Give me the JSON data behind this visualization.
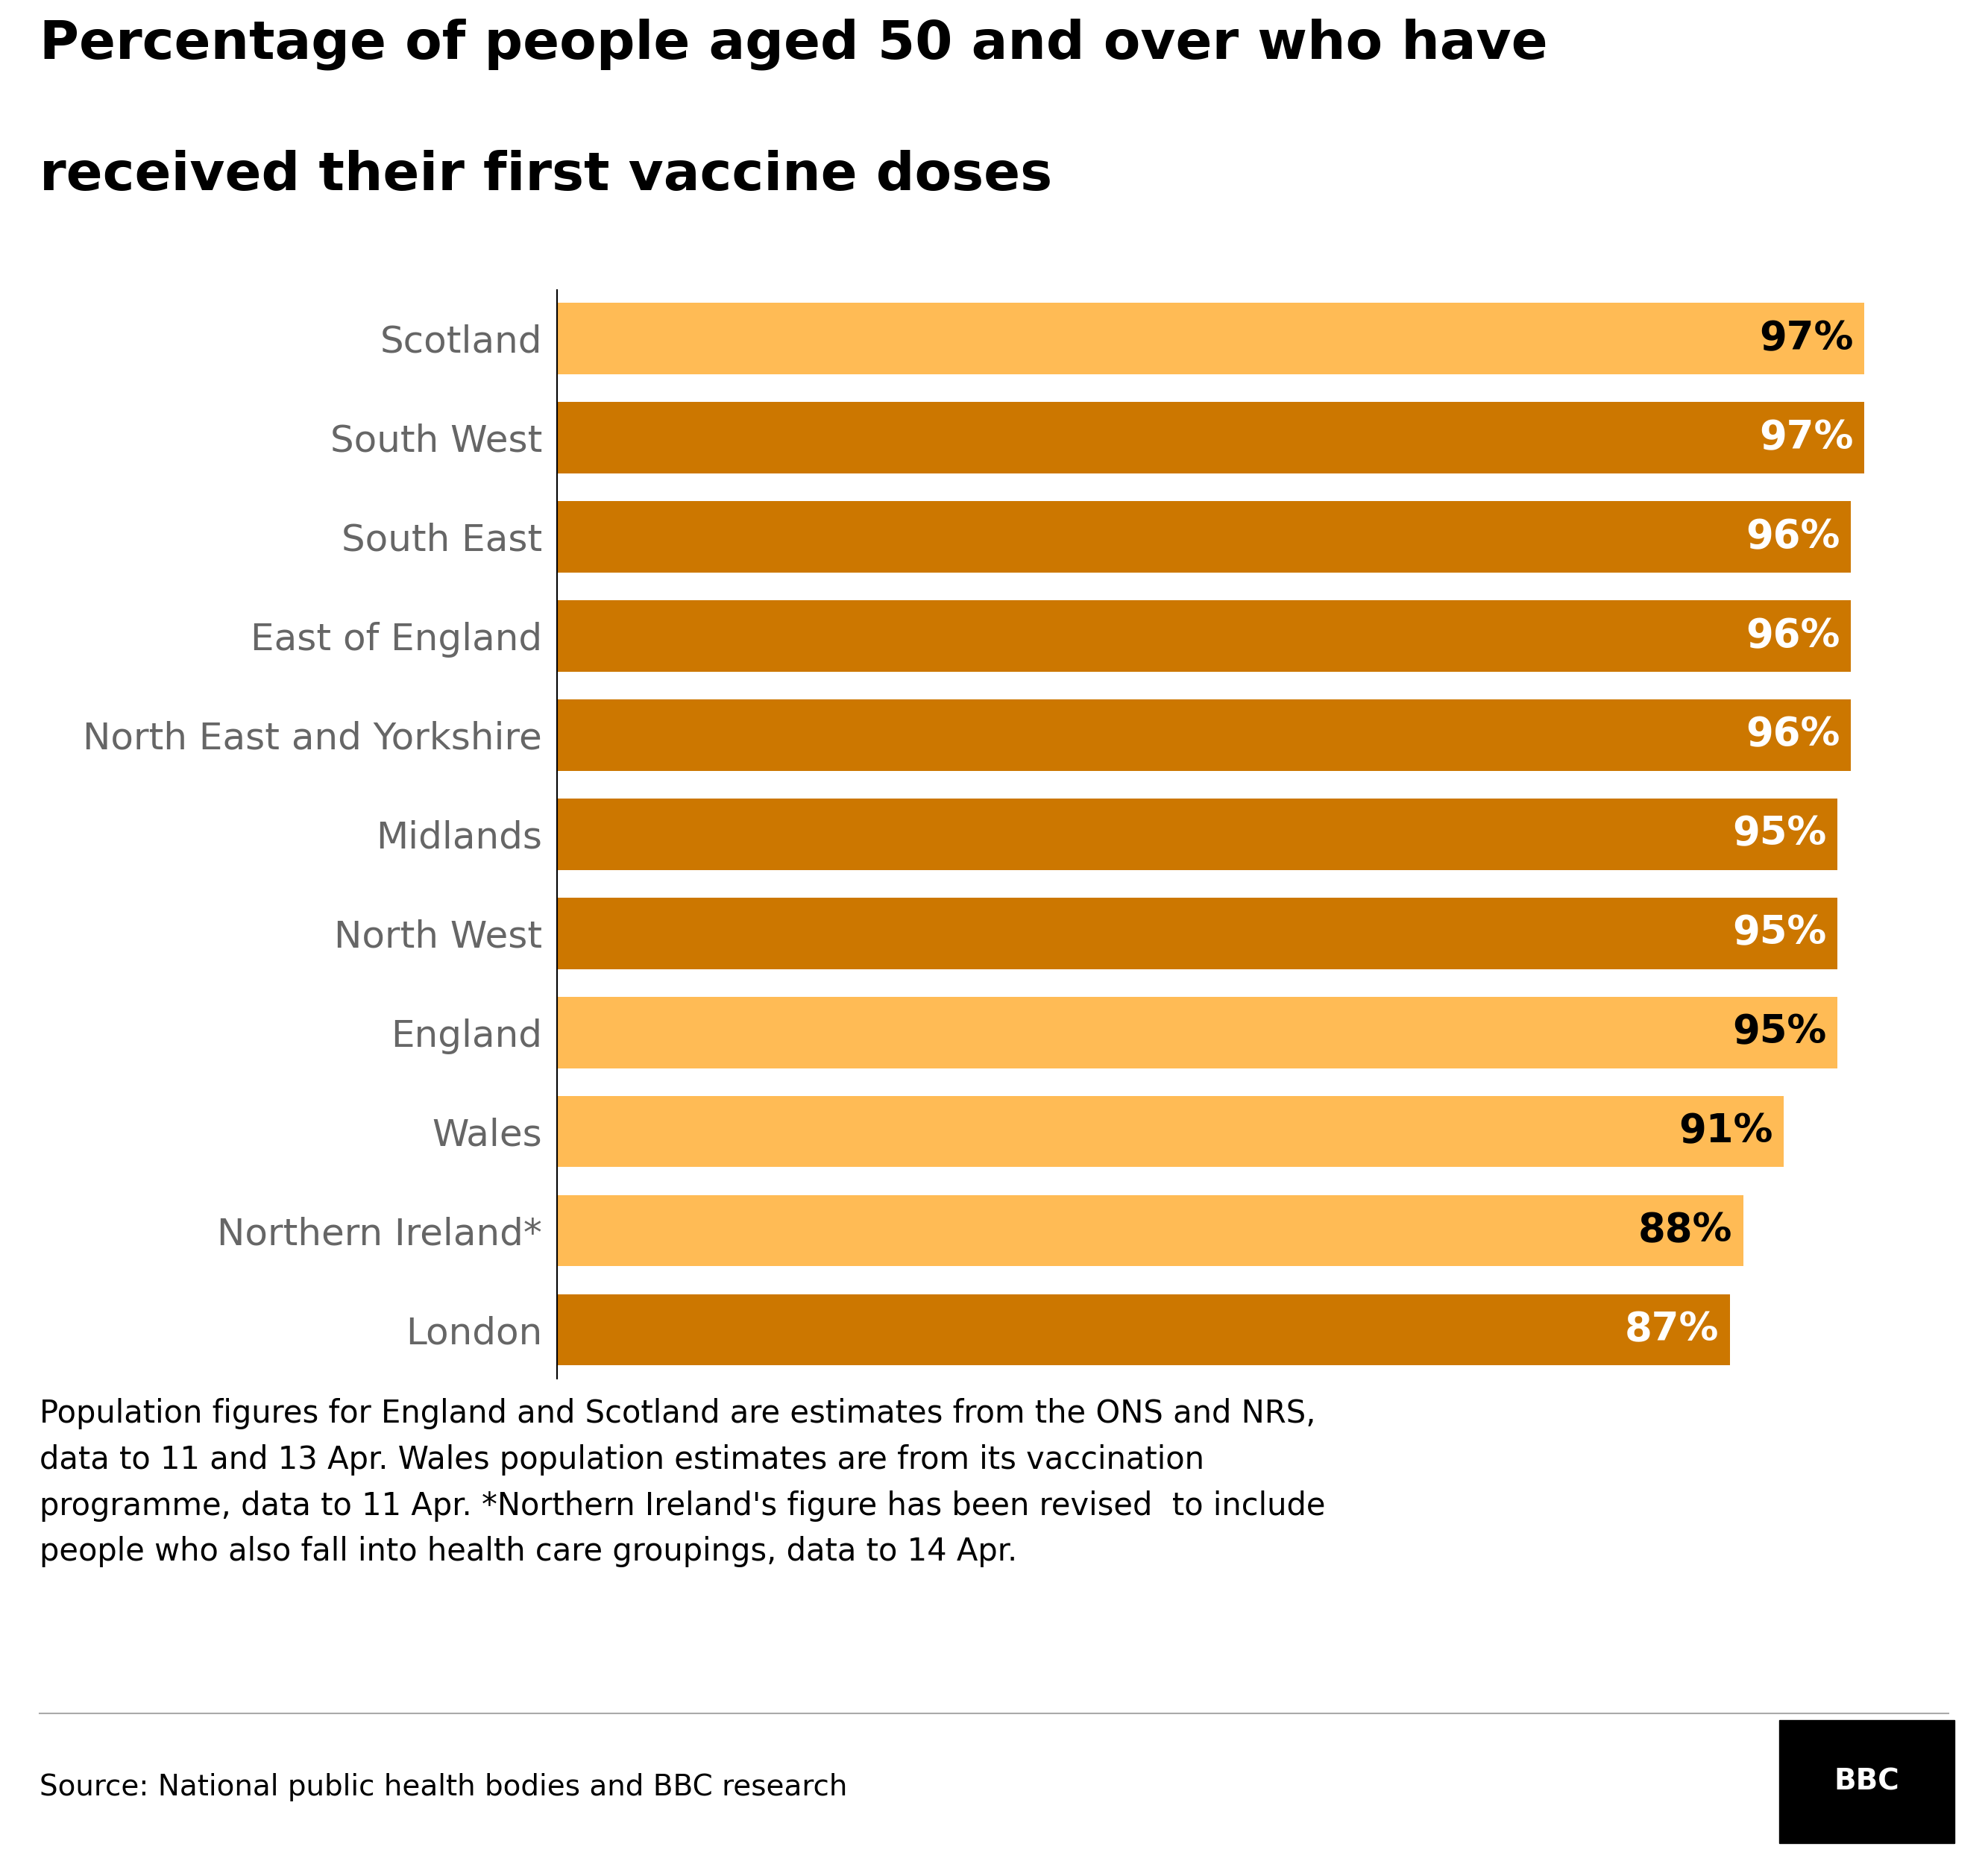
{
  "title_line1": "Percentage of people aged 50 and over who have",
  "title_line2": "received their first vaccine doses",
  "categories": [
    "Scotland",
    "South West",
    "South East",
    "East of England",
    "North East and Yorkshire",
    "Midlands",
    "North West",
    "England",
    "Wales",
    "Northern Ireland*",
    "London"
  ],
  "values": [
    97,
    97,
    96,
    96,
    96,
    95,
    95,
    95,
    91,
    88,
    87
  ],
  "bar_colors": [
    "#FFBB55",
    "#CC7700",
    "#CC7700",
    "#CC7700",
    "#CC7700",
    "#CC7700",
    "#CC7700",
    "#FFBB55",
    "#FFBB55",
    "#FFBB55",
    "#CC7700"
  ],
  "label_colors": [
    "#000000",
    "#FFFFFF",
    "#FFFFFF",
    "#FFFFFF",
    "#FFFFFF",
    "#FFFFFF",
    "#FFFFFF",
    "#000000",
    "#000000",
    "#000000",
    "#FFFFFF"
  ],
  "footnote": "Population figures for England and Scotland are estimates from the ONS and NRS,\ndata to 11 and 13 Apr. Wales population estimates are from its vaccination\nprogramme, data to 11 Apr. *Northern Ireland's figure has been revised  to include\npeople who also fall into health care groupings, data to 14 Apr.",
  "source": "Source: National public health bodies and BBC research",
  "background_color": "#FFFFFF",
  "bar_height": 0.72,
  "xlim_max": 101,
  "title_fontsize": 52,
  "label_fontsize": 36,
  "value_fontsize": 38,
  "footnote_fontsize": 30,
  "source_fontsize": 28,
  "ytick_color": "#666666"
}
